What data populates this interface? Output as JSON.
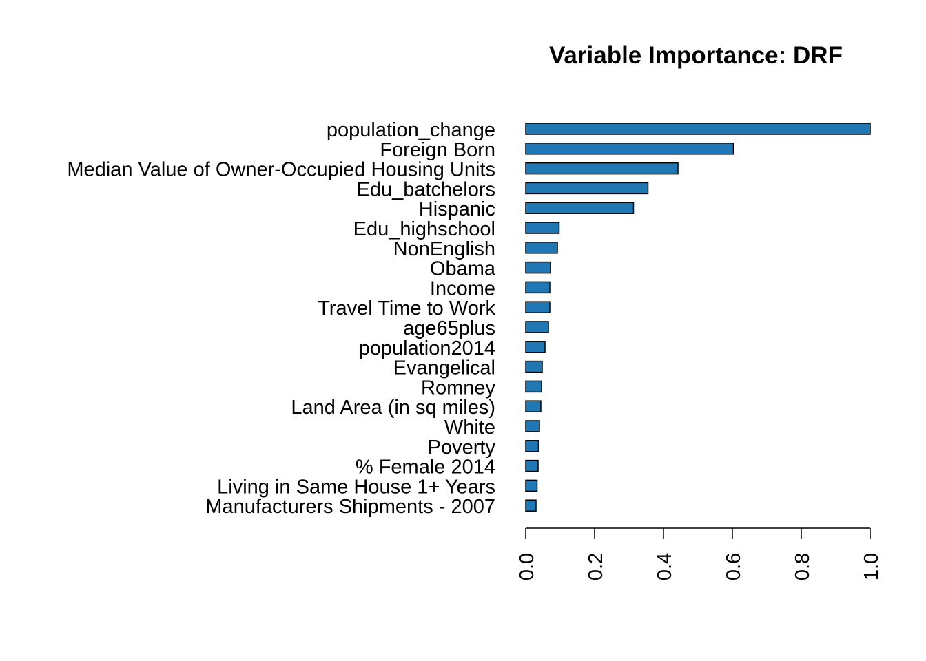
{
  "chart_data": {
    "type": "bar",
    "orientation": "horizontal",
    "title": "Variable Importance: DRF",
    "xlabel": "",
    "ylabel": "",
    "xlim": [
      0,
      1.0
    ],
    "x_ticks": [
      "0.0",
      "0.2",
      "0.4",
      "0.6",
      "0.8",
      "1.0"
    ],
    "x_tick_values": [
      0.0,
      0.2,
      0.4,
      0.6,
      0.8,
      1.0
    ],
    "grid": false,
    "legend": "none",
    "bar_color": "#1f78b4",
    "bar_border_color": "#000000",
    "categories": [
      "population_change",
      "Foreign Born",
      "Median Value of Owner-Occupied Housing Units",
      "Edu_batchelors",
      "Hispanic",
      "Edu_highschool",
      "NonEnglish",
      "Obama",
      "Income",
      "Travel Time to Work",
      "age65plus",
      "population2014",
      "Evangelical",
      "Romney",
      "Land Area (in sq miles)",
      "White",
      "Poverty",
      "% Female 2014",
      "Living in Same House 1+ Years",
      "Manufacturers Shipments - 2007"
    ],
    "values": [
      1.0,
      0.603,
      0.442,
      0.355,
      0.313,
      0.097,
      0.092,
      0.072,
      0.07,
      0.07,
      0.066,
      0.056,
      0.048,
      0.046,
      0.044,
      0.04,
      0.037,
      0.036,
      0.033,
      0.03
    ]
  }
}
